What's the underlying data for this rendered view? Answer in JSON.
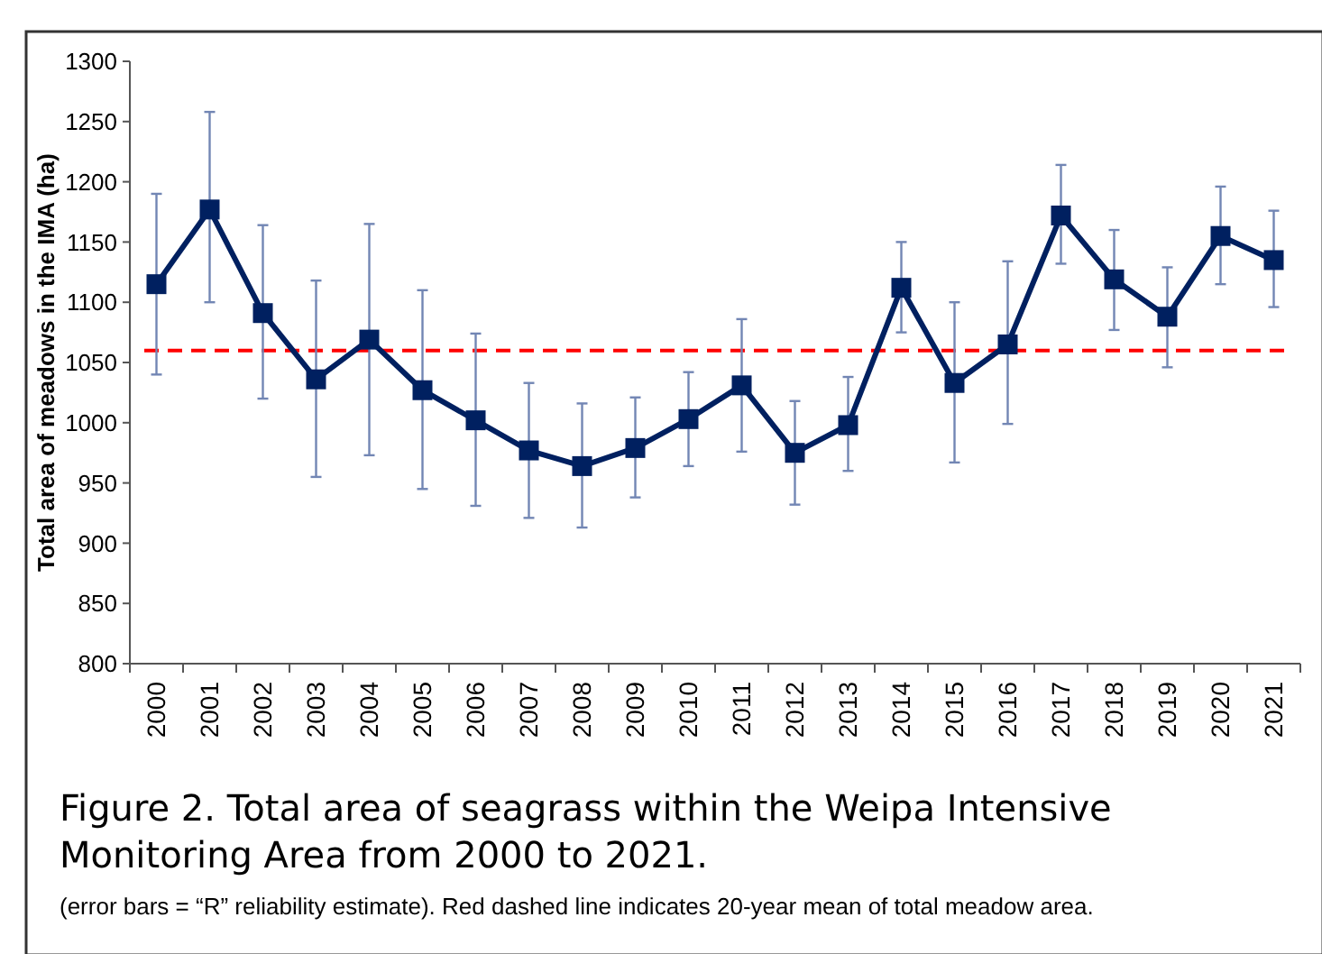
{
  "chart_data": {
    "type": "line",
    "title": "Figure 2. Total area of seagrass within the Weipa Intensive Monitoring Area from 2000 to 2021.",
    "ylabel": "Total area of meadows in the IMA (ha)",
    "annotations": [
      "(error bars = “R” reliability estimate). Red dashed line indicates 20-year mean of total meadow area."
    ],
    "categories": [
      "2000",
      "2001",
      "2002",
      "2003",
      "2004",
      "2005",
      "2006",
      "2007",
      "2008",
      "2009",
      "2010",
      "2011",
      "2012",
      "2013",
      "2014",
      "2015",
      "2016",
      "2017",
      "2018",
      "2019",
      "2020",
      "2021"
    ],
    "series": [
      {
        "color": "#002060",
        "values": [
          1115,
          1177,
          1091,
          1036,
          1069,
          1027,
          1002,
          977,
          964,
          979,
          1003,
          1031,
          975,
          998,
          1112,
          1033,
          1065,
          1172,
          1119,
          1088,
          1155,
          1135
        ],
        "errors": [
          [
            1040,
            1190
          ],
          [
            1100,
            1258
          ],
          [
            1020,
            1164
          ],
          [
            955,
            1118
          ],
          [
            973,
            1165
          ],
          [
            945,
            1110
          ],
          [
            931,
            1074
          ],
          [
            921,
            1033
          ],
          [
            913,
            1016
          ],
          [
            938,
            1021
          ],
          [
            964,
            1042
          ],
          [
            976,
            1086
          ],
          [
            932,
            1018
          ],
          [
            960,
            1038
          ],
          [
            1075,
            1150
          ],
          [
            967,
            1100
          ],
          [
            999,
            1134
          ],
          [
            1132,
            1214
          ],
          [
            1077,
            1160
          ],
          [
            1046,
            1129
          ],
          [
            1115,
            1196
          ],
          [
            1096,
            1176
          ]
        ]
      }
    ],
    "ylim": [
      800,
      1300
    ],
    "yticks": [
      800,
      850,
      900,
      950,
      1000,
      1050,
      1100,
      1150,
      1200,
      1250,
      1300
    ],
    "ref_lines": [
      {
        "axis": "y",
        "value": 1060,
        "color": "#ff0000",
        "line_style": "dashed"
      }
    ],
    "marker": "square",
    "line_style": "solid",
    "grid": false
  }
}
